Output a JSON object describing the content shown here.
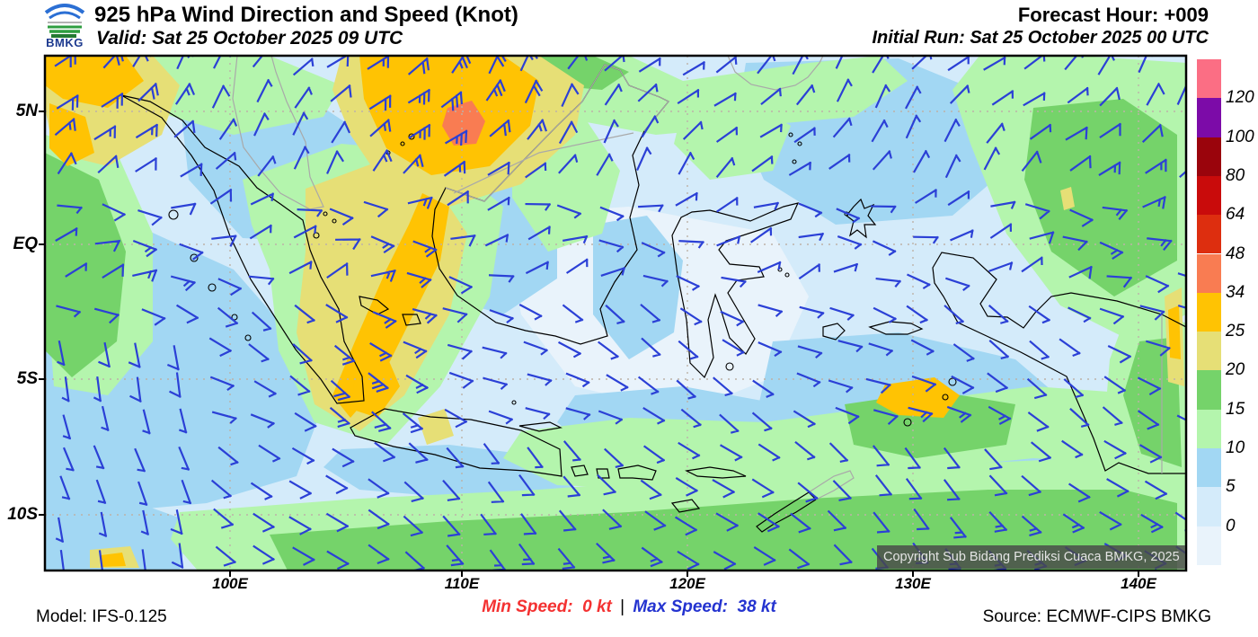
{
  "header": {
    "title": "925 hPa Wind Direction and Speed (Knot)",
    "valid": "Valid: Sat 25 October 2025 09 UTC",
    "forecast_hour": "Forecast Hour: +009",
    "initial_run": "Initial Run: Sat 25 October 2025 00 UTC",
    "logo_text": "BMKG"
  },
  "axes": {
    "lat_ticks": [
      "5N",
      "EQ",
      "5S",
      "10S"
    ],
    "lon_ticks": [
      "100E",
      "110E",
      "120E",
      "130E",
      "140E"
    ]
  },
  "colorbar": {
    "labels": [
      "120",
      "100",
      "80",
      "64",
      "48",
      "34",
      "25",
      "20",
      "15",
      "10",
      "5",
      "0"
    ],
    "colors": [
      "#fb6e84",
      "#7c0ba8",
      "#9a040c",
      "#c90b0b",
      "#dd2e0f",
      "#f97c52",
      "#ffc303",
      "#e6df76",
      "#75d36a",
      "#b4f5ad",
      "#a2d7f3",
      "#d4ebfa",
      "#e9f3fb"
    ]
  },
  "map": {
    "copyright": "Copyright Sub Bidang Prediksi Cuaca BMKG, 2025",
    "barb_color": "#2b40d6",
    "coast_color": "#000000",
    "foreign_coast_color": "#a9a9a9"
  },
  "footer": {
    "model": "Model: IFS-0.125",
    "min_speed_label": "Min Speed:",
    "min_speed_value": "0 kt",
    "separator": "|",
    "max_speed_label": "Max Speed:",
    "max_speed_value": "38 kt",
    "source": "Source: ECMWF-CIPS BMKG",
    "min_color": "#f43131",
    "max_color": "#2433d0"
  },
  "chart_data": {
    "type": "heatmap",
    "title": "925 hPa Wind Direction and Speed (Knot)",
    "level": "925 hPa",
    "units": "knot",
    "lon_range": [
      "92E",
      "142E"
    ],
    "lat_range": [
      "12S",
      "7N"
    ],
    "colorbar_levels_kt": [
      0,
      5,
      10,
      15,
      20,
      25,
      34,
      48,
      64,
      80,
      100,
      120
    ],
    "min_speed_kt": 0,
    "max_speed_kt": 38,
    "legend_position": "right",
    "grid": "dotted, 10-degree lon / 5-degree lat",
    "notable_features": [
      {
        "area": "South China Sea north of Borneo (~110E, 4N)",
        "speed_kt": "34-48"
      },
      {
        "area": "NW corner near N. Sumatra / Andaman Sea",
        "speed_kt": "25-34"
      },
      {
        "area": "SW coast of Sumatra diagonal band",
        "speed_kt": "25-34"
      },
      {
        "area": "South of western Java",
        "speed_kt": "25-34"
      },
      {
        "area": "Southern Indian Ocean band and Arafura Sea",
        "speed_kt": "10-20"
      },
      {
        "area": "Interior seas near equator",
        "speed_kt": "0-10"
      }
    ]
  }
}
